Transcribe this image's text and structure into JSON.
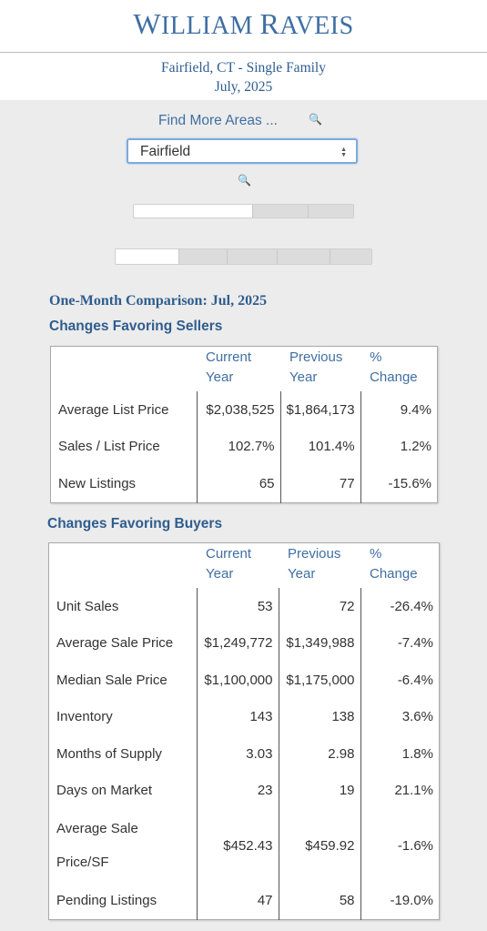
{
  "header": {
    "logo_first": "W",
    "logo_rest1": "ILLIAM ",
    "logo_r": "R",
    "logo_rest2": "AVEIS"
  },
  "report": {
    "line1": "Fairfield, CT - Single Family",
    "line2": "July, 2025"
  },
  "controls": {
    "find_more_label": "Find More Areas ...",
    "search_icon": "🔍",
    "area_select": {
      "selected": "Fairfield"
    },
    "toggle1_active_index": 0,
    "toggle2_active_index": 0
  },
  "comparison": {
    "title": "One-Month Comparison:  Jul, 2025",
    "sellers": {
      "title": "Changes Favoring Sellers",
      "headers": {
        "current": "Current Year",
        "previous": "Previous Year",
        "change": "% Change"
      },
      "rows": [
        {
          "label": "Average List Price",
          "current": "$2,038,525",
          "previous": "$1,864,173",
          "change": "9.4%"
        },
        {
          "label": "Sales / List Price",
          "current": "102.7%",
          "previous": "101.4%",
          "change": "1.2%"
        },
        {
          "label": "New Listings",
          "current": "65",
          "previous": "77",
          "change": "-15.6%"
        }
      ]
    },
    "buyers": {
      "title": "Changes Favoring Buyers",
      "headers": {
        "current": "Current Year",
        "previous": "Previous Year",
        "change": "% Change"
      },
      "rows": [
        {
          "label": "Unit Sales",
          "current": "53",
          "previous": "72",
          "change": "-26.4%"
        },
        {
          "label": "Average Sale Price",
          "current": "$1,249,772",
          "previous": "$1,349,988",
          "change": "-7.4%"
        },
        {
          "label": "Median Sale Price",
          "current": "$1,100,000",
          "previous": "$1,175,000",
          "change": "-6.4%"
        },
        {
          "label": "Inventory",
          "current": "143",
          "previous": "138",
          "change": "3.6%"
        },
        {
          "label": "Months of Supply",
          "current": "3.03",
          "previous": "2.98",
          "change": "1.8%"
        },
        {
          "label": "Days on Market",
          "current": "23",
          "previous": "19",
          "change": "21.1%"
        },
        {
          "label": "Average Sale Price/SF",
          "current": "$452.43",
          "previous": "$459.92",
          "change": "-1.6%"
        },
        {
          "label": "Pending Listings",
          "current": "47",
          "previous": "58",
          "change": "-19.0%"
        }
      ]
    }
  }
}
